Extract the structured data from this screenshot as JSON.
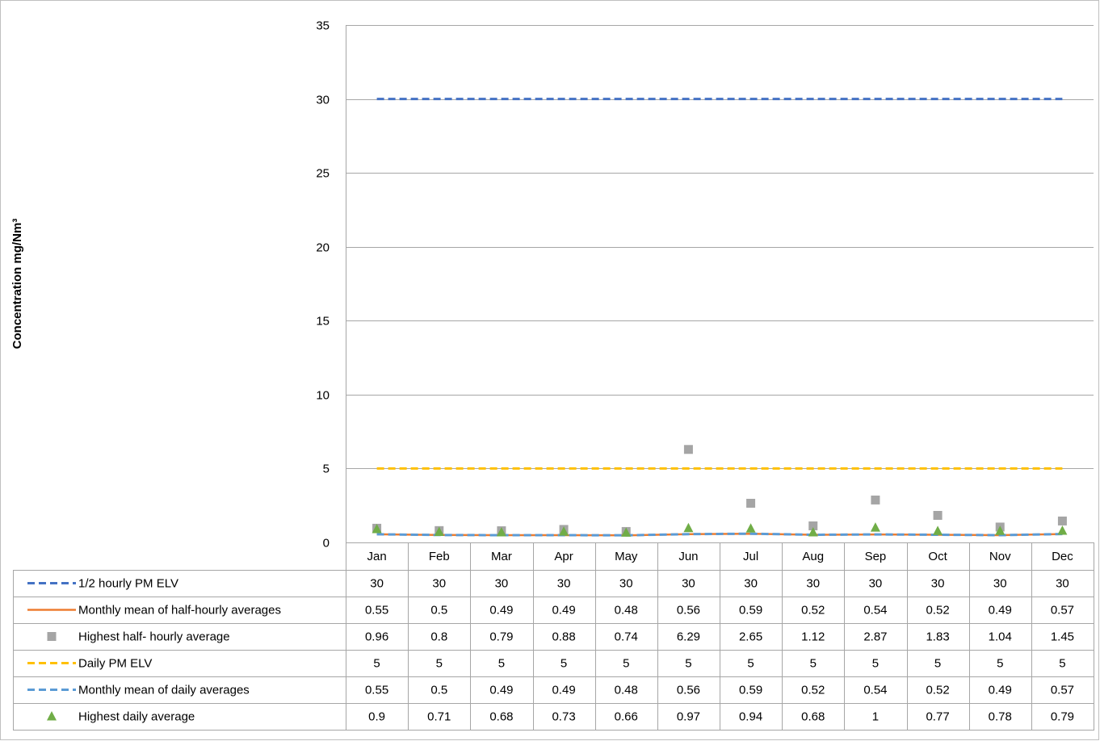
{
  "chart_data": {
    "type": "line",
    "title": "",
    "xlabel": "",
    "ylabel": "Concentration mg/Nm³",
    "ylim": [
      0,
      35
    ],
    "yticks": [
      0,
      5,
      10,
      15,
      20,
      25,
      30,
      35
    ],
    "grid": true,
    "legend": "data-table-left",
    "categories": [
      "Jan",
      "Feb",
      "Mar",
      "Apr",
      "May",
      "Jun",
      "Jul",
      "Aug",
      "Sep",
      "Oct",
      "Nov",
      "Dec"
    ],
    "series": [
      {
        "name": "1/2 hourly PM ELV",
        "style": "dashed-line",
        "color": "#4472c4",
        "values": [
          30,
          30,
          30,
          30,
          30,
          30,
          30,
          30,
          30,
          30,
          30,
          30
        ],
        "labels": [
          "30",
          "30",
          "30",
          "30",
          "30",
          "30",
          "30",
          "30",
          "30",
          "30",
          "30",
          "30"
        ]
      },
      {
        "name": "Monthly mean of half-hourly averages",
        "style": "solid-line",
        "color": "#ed7d31",
        "values": [
          0.55,
          0.5,
          0.49,
          0.49,
          0.48,
          0.56,
          0.59,
          0.52,
          0.54,
          0.52,
          0.49,
          0.57
        ],
        "labels": [
          "0.55",
          "0.5",
          "0.49",
          "0.49",
          "0.48",
          "0.56",
          "0.59",
          "0.52",
          "0.54",
          "0.52",
          "0.49",
          "0.57"
        ]
      },
      {
        "name": "Highest half- hourly average",
        "style": "square-marker",
        "color": "#a5a5a5",
        "values": [
          0.96,
          0.8,
          0.79,
          0.88,
          0.74,
          6.29,
          2.65,
          1.12,
          2.87,
          1.83,
          1.04,
          1.45
        ],
        "labels": [
          "0.96",
          "0.8",
          "0.79",
          "0.88",
          "0.74",
          "6.29",
          "2.65",
          "1.12",
          "2.87",
          "1.83",
          "1.04",
          "1.45"
        ]
      },
      {
        "name": "Daily PM ELV",
        "style": "dashed-line",
        "color": "#ffc000",
        "values": [
          5,
          5,
          5,
          5,
          5,
          5,
          5,
          5,
          5,
          5,
          5,
          5
        ],
        "labels": [
          "5",
          "5",
          "5",
          "5",
          "5",
          "5",
          "5",
          "5",
          "5",
          "5",
          "5",
          "5"
        ]
      },
      {
        "name": "Monthly mean of  daily averages",
        "style": "dashed-line",
        "color": "#5b9bd5",
        "values": [
          0.55,
          0.5,
          0.49,
          0.49,
          0.48,
          0.56,
          0.59,
          0.52,
          0.54,
          0.52,
          0.49,
          0.57
        ],
        "labels": [
          "0.55",
          "0.5",
          "0.49",
          "0.49",
          "0.48",
          "0.56",
          "0.59",
          "0.52",
          "0.54",
          "0.52",
          "0.49",
          "0.57"
        ]
      },
      {
        "name": "Highest daily average",
        "style": "triangle-marker",
        "color": "#70ad47",
        "values": [
          0.9,
          0.71,
          0.68,
          0.73,
          0.66,
          0.97,
          0.94,
          0.68,
          1,
          0.77,
          0.78,
          0.79
        ],
        "labels": [
          "0.9",
          "0.71",
          "0.68",
          "0.73",
          "0.66",
          "0.97",
          "0.94",
          "0.68",
          "1",
          "0.77",
          "0.78",
          "0.79"
        ]
      }
    ]
  }
}
